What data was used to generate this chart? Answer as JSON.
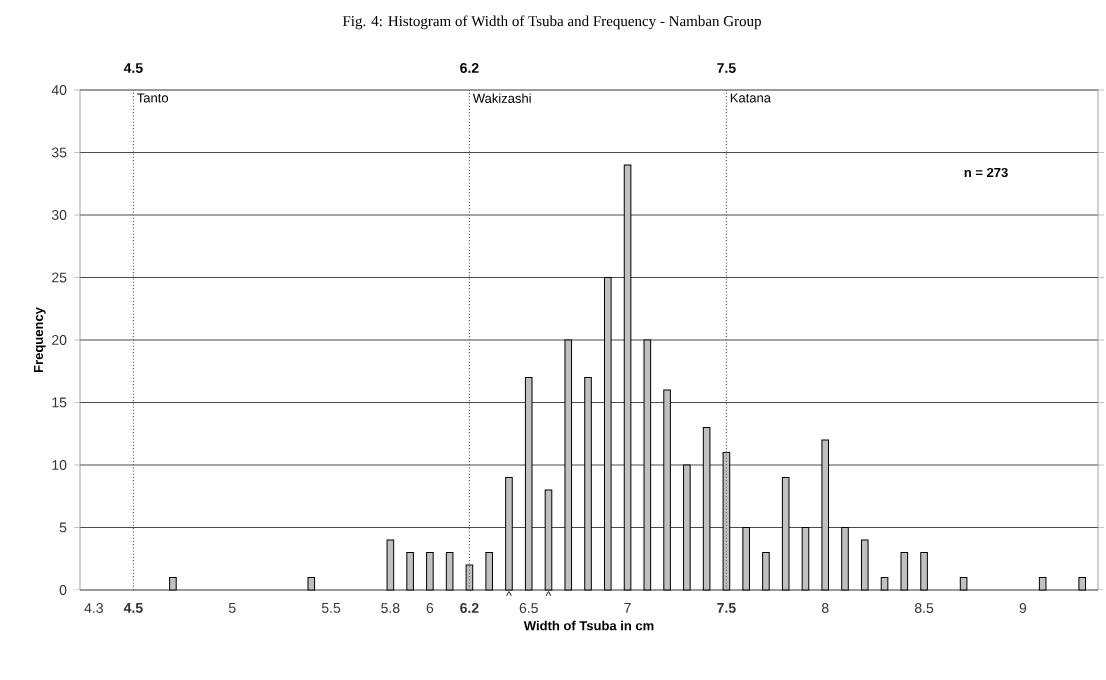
{
  "chart_data": {
    "type": "bar",
    "title": "Fig. 4:  Histogram of Width of Tsuba and Frequency - Namban Group",
    "xlabel": "Width of Tsuba in cm",
    "ylabel": "Frequency",
    "x": [
      4.3,
      4.4,
      4.5,
      4.6,
      4.7,
      4.8,
      4.9,
      5.0,
      5.1,
      5.2,
      5.3,
      5.4,
      5.5,
      5.6,
      5.7,
      5.8,
      5.9,
      6.0,
      6.1,
      6.2,
      6.3,
      6.4,
      6.5,
      6.6,
      6.7,
      6.8,
      6.9,
      7.0,
      7.1,
      7.2,
      7.3,
      7.4,
      7.5,
      7.6,
      7.7,
      7.8,
      7.9,
      8.0,
      8.1,
      8.2,
      8.3,
      8.4,
      8.5,
      8.6,
      8.7,
      8.8,
      8.9,
      9.0,
      9.1,
      9.2,
      9.3
    ],
    "values": [
      0,
      0,
      0,
      0,
      1,
      0,
      0,
      0,
      0,
      0,
      0,
      1,
      0,
      0,
      0,
      4,
      3,
      3,
      3,
      2,
      3,
      9,
      17,
      8,
      20,
      17,
      25,
      34,
      20,
      16,
      10,
      13,
      11,
      5,
      3,
      9,
      5,
      12,
      5,
      4,
      1,
      3,
      3,
      0,
      1,
      0,
      0,
      0,
      1,
      0,
      1
    ],
    "color": "#c0c0c0",
    "xlim": [
      4.23,
      9.38
    ],
    "ylim": [
      0,
      40
    ],
    "xticks": [
      4.3,
      4.5,
      5,
      5.5,
      5.8,
      6,
      6.2,
      6.5,
      7,
      7.5,
      8,
      8.5,
      9
    ],
    "yticks": [
      0,
      5,
      10,
      15,
      20,
      25,
      30,
      35,
      40
    ],
    "grid": "y",
    "ref_lines": [
      {
        "axis": "x",
        "value": 4.5,
        "label": "4.5",
        "line_style": "dotted"
      },
      {
        "axis": "x",
        "value": 6.2,
        "label": "6.2",
        "line_style": "dotted"
      },
      {
        "axis": "x",
        "value": 7.5,
        "label": "7.5",
        "line_style": "dotted"
      }
    ],
    "annotations": [
      {
        "text": "Tanto",
        "x": 4.5,
        "y": 40
      },
      {
        "text": "Wakizashi",
        "x": 6.2,
        "y": 40
      },
      {
        "text": "Katana",
        "x": 7.5,
        "y": 40
      },
      "n = 273",
      {
        "text": "^",
        "x": 6.4,
        "y": 0
      },
      {
        "text": "^",
        "x": 6.6,
        "y": 0
      }
    ]
  }
}
